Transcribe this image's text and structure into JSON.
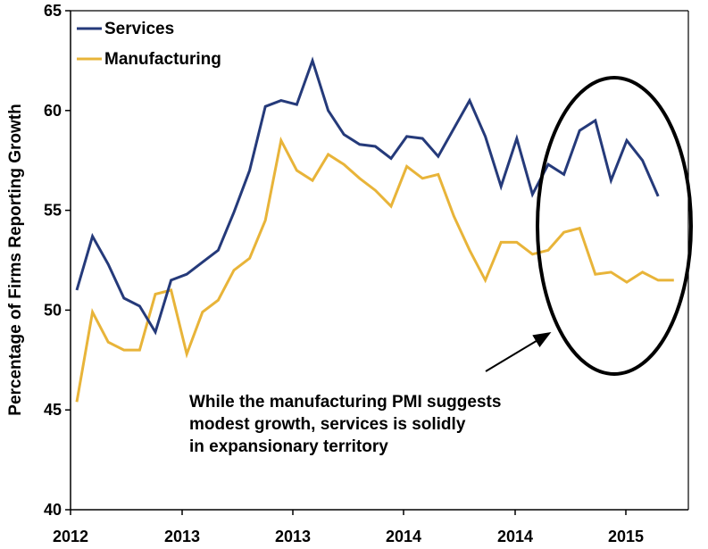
{
  "chart_data": {
    "type": "line",
    "title": "",
    "ylabel": "Percentage of Firms Reporting Growth",
    "xlabel": "",
    "ylim": [
      40,
      65
    ],
    "yticks": [
      40,
      45,
      50,
      55,
      60,
      65
    ],
    "xtick_labels": [
      "2012",
      "2013",
      "2013",
      "2014",
      "2014",
      "2015"
    ],
    "legend_position": "top-left",
    "grid": false,
    "series": [
      {
        "name": "Services",
        "color": "#253a7a",
        "values": [
          51.0,
          53.7,
          52.3,
          50.6,
          50.2,
          48.9,
          51.5,
          51.8,
          52.4,
          53.0,
          54.9,
          57.0,
          60.2,
          60.5,
          60.3,
          62.5,
          60.0,
          58.8,
          58.3,
          58.2,
          57.6,
          58.7,
          58.6,
          57.7,
          59.1,
          60.5,
          58.7,
          56.2,
          58.6,
          55.8,
          57.3,
          56.8,
          59.0,
          59.5,
          56.5,
          58.5,
          57.5,
          55.7
        ]
      },
      {
        "name": "Manufacturing",
        "color": "#e8b439",
        "values": [
          45.4,
          49.9,
          48.4,
          48.0,
          48.0,
          50.8,
          51.0,
          47.8,
          49.9,
          50.5,
          52.0,
          52.6,
          54.5,
          58.5,
          57.0,
          56.5,
          57.8,
          57.3,
          56.6,
          56.0,
          55.2,
          57.2,
          56.6,
          56.8,
          54.7,
          53.0,
          51.5,
          53.4,
          53.4,
          52.8,
          53.0,
          53.9,
          54.1,
          51.8,
          51.9,
          51.4,
          51.9,
          51.5,
          51.5
        ]
      }
    ],
    "annotation": {
      "lines": [
        "While the manufacturing PMI suggests",
        "modest growth, services is solidly",
        "in expansionary territory"
      ]
    }
  }
}
